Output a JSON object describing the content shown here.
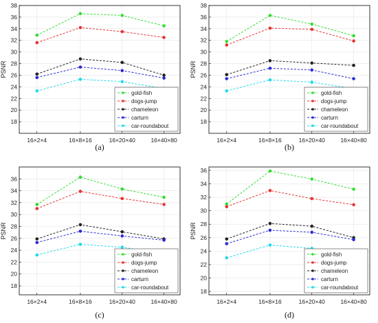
{
  "chart_data": [
    {
      "type": "line",
      "caption": "(a)",
      "ylabel": "PSNR",
      "xlabel": "",
      "categories": [
        "16×2×4",
        "16×8×16",
        "16×20×40",
        "16×40×80"
      ],
      "ylim": [
        16,
        38
      ],
      "yticks": [
        18,
        20,
        22,
        24,
        26,
        28,
        30,
        32,
        34,
        36,
        38
      ],
      "legend_position": "bottom-right",
      "grid": true,
      "series": [
        {
          "name": "gold-fish",
          "color": "#33dd33",
          "values": [
            32.9,
            36.6,
            36.3,
            34.5
          ]
        },
        {
          "name": "dogs-jump",
          "color": "#e53333",
          "values": [
            31.6,
            34.2,
            33.5,
            32.5
          ]
        },
        {
          "name": "chameleon",
          "color": "#222222",
          "values": [
            26.2,
            28.8,
            28.2,
            26.0
          ]
        },
        {
          "name": "carturn",
          "color": "#2a2ad4",
          "values": [
            25.6,
            27.4,
            26.8,
            25.5
          ]
        },
        {
          "name": "car-roundabout",
          "color": "#22d8e8",
          "values": [
            23.3,
            25.3,
            24.9,
            23.7
          ]
        }
      ]
    },
    {
      "type": "line",
      "caption": "(b)",
      "ylabel": "PSNR",
      "xlabel": "",
      "categories": [
        "16×2×4",
        "16×8×16",
        "16×20×40",
        "16×40×80"
      ],
      "ylim": [
        16,
        38
      ],
      "yticks": [
        18,
        20,
        22,
        24,
        26,
        28,
        30,
        32,
        34,
        36,
        38
      ],
      "legend_position": "bottom-right",
      "grid": true,
      "series": [
        {
          "name": "gold-fish",
          "color": "#33dd33",
          "values": [
            31.8,
            36.3,
            34.8,
            32.8
          ]
        },
        {
          "name": "dogs-jump",
          "color": "#e53333",
          "values": [
            31.2,
            34.1,
            33.9,
            31.9
          ]
        },
        {
          "name": "chameleon",
          "color": "#222222",
          "values": [
            26.1,
            28.5,
            28.1,
            27.7
          ]
        },
        {
          "name": "carturn",
          "color": "#2a2ad4",
          "values": [
            25.4,
            27.2,
            26.9,
            25.4
          ]
        },
        {
          "name": "car-roundabout",
          "color": "#22d8e8",
          "values": [
            23.3,
            25.2,
            24.8,
            23.7
          ]
        }
      ]
    },
    {
      "type": "line",
      "caption": "(c)",
      "ylabel": "PSNR",
      "xlabel": "",
      "categories": [
        "16×2×4",
        "16×8×16",
        "16×20×40",
        "16×40×80"
      ],
      "ylim": [
        16.5,
        38
      ],
      "yticks": [
        18,
        20,
        22,
        24,
        26,
        28,
        30,
        32,
        34,
        36
      ],
      "legend_position": "bottom-right",
      "grid": true,
      "series": [
        {
          "name": "gold-fish",
          "color": "#33dd33",
          "values": [
            31.7,
            36.3,
            34.3,
            32.9
          ]
        },
        {
          "name": "dogs-jump",
          "color": "#e53333",
          "values": [
            31.0,
            33.9,
            32.7,
            31.7
          ]
        },
        {
          "name": "chameleon",
          "color": "#222222",
          "values": [
            25.9,
            28.3,
            27.1,
            25.9
          ]
        },
        {
          "name": "carturn",
          "color": "#2a2ad4",
          "values": [
            25.3,
            27.2,
            26.4,
            25.7
          ]
        },
        {
          "name": "car-roundabout",
          "color": "#22d8e8",
          "values": [
            23.2,
            25.0,
            24.5,
            23.5
          ]
        }
      ]
    },
    {
      "type": "line",
      "caption": "(d)",
      "ylabel": "PSNR",
      "xlabel": "",
      "categories": [
        "16×2×4",
        "16×8×16",
        "16×20×40",
        "16×40×80"
      ],
      "ylim": [
        17.5,
        36.5
      ],
      "yticks": [
        18,
        20,
        22,
        24,
        26,
        28,
        30,
        32,
        34,
        36
      ],
      "legend_position": "bottom-right",
      "grid": true,
      "series": [
        {
          "name": "gold-fish",
          "color": "#33dd33",
          "values": [
            31.0,
            35.9,
            34.7,
            33.2
          ]
        },
        {
          "name": "dogs-jump",
          "color": "#e53333",
          "values": [
            30.6,
            33.0,
            31.8,
            30.9
          ]
        },
        {
          "name": "chameleon",
          "color": "#222222",
          "values": [
            25.8,
            28.1,
            27.7,
            26.0
          ]
        },
        {
          "name": "carturn",
          "color": "#2a2ad4",
          "values": [
            25.1,
            27.1,
            26.8,
            25.7
          ]
        },
        {
          "name": "car-roundabout",
          "color": "#22d8e8",
          "values": [
            23.0,
            24.9,
            24.4,
            23.5
          ]
        }
      ]
    }
  ]
}
